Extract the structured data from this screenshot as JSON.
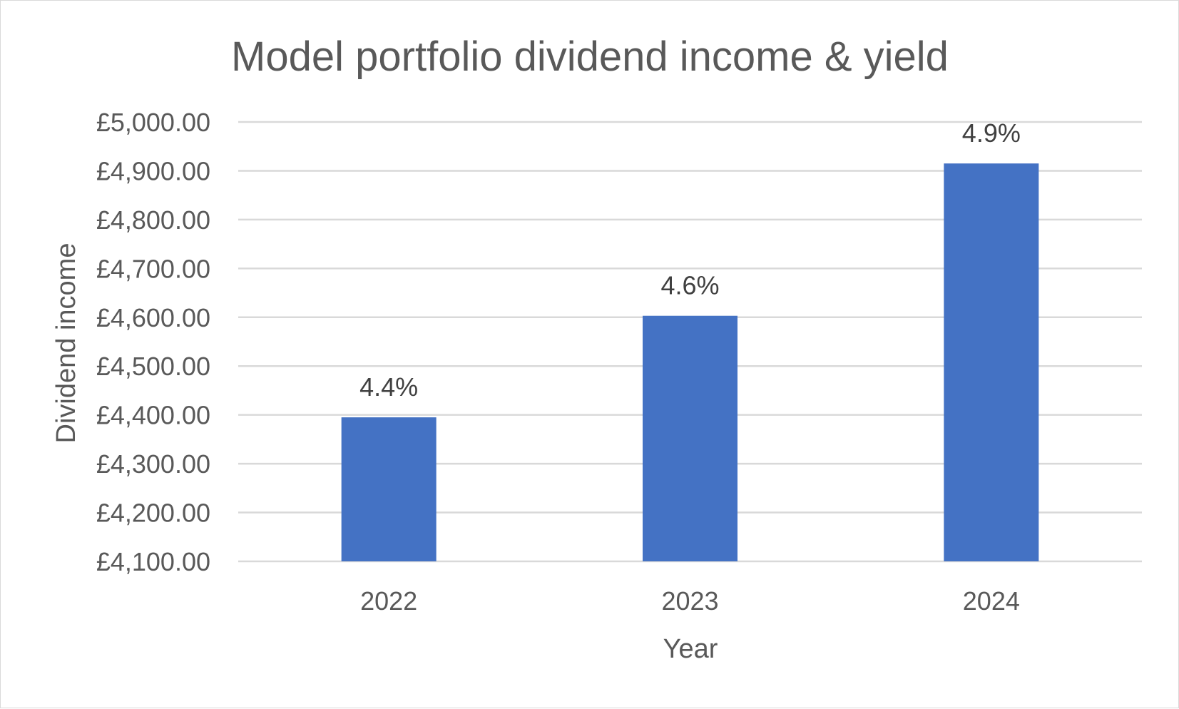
{
  "chart_data": {
    "type": "bar",
    "title": "Model portfolio dividend income & yield",
    "xlabel": "Year",
    "ylabel": "Dividend income",
    "categories": [
      "2022",
      "2023",
      "2024"
    ],
    "values": [
      4395,
      4603,
      4915
    ],
    "data_labels": [
      "4.4%",
      "4.6%",
      "4.9%"
    ],
    "ylim": [
      4100,
      5000
    ],
    "yticks": [
      4100,
      4200,
      4300,
      4400,
      4500,
      4600,
      4700,
      4800,
      4900,
      5000
    ],
    "ytick_labels": [
      "£4,100.00",
      "£4,200.00",
      "£4,300.00",
      "£4,400.00",
      "£4,500.00",
      "£4,600.00",
      "£4,700.00",
      "£4,800.00",
      "£4,900.00",
      "£5,000.00"
    ],
    "grid": true,
    "legend": "none",
    "bar_color": "#4472c4"
  }
}
